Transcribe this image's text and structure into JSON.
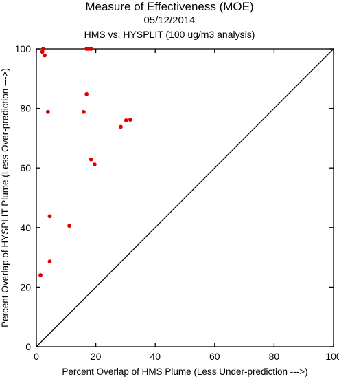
{
  "header": {
    "title": "Measure of Effectiveness (MOE)",
    "date": "05/12/2014",
    "analysis": "HMS vs. HYSPLIT  (100 ug/m3 analysis)"
  },
  "chart_data": {
    "type": "scatter",
    "xlabel": "Percent Overlap of HMS Plume (Less Under-prediction --->)",
    "ylabel": "Percent Overlap of HYSPLIT Plume (Less Over-prediction --->)",
    "xlim": [
      0,
      100
    ],
    "ylim": [
      0,
      100
    ],
    "xticks": [
      0,
      20,
      40,
      60,
      80,
      100
    ],
    "yticks": [
      0,
      20,
      40,
      60,
      80,
      100
    ],
    "grid": false,
    "reference_line": "diagonal y = x",
    "point_color": "#e00000",
    "points": [
      {
        "x": 2.3,
        "y": 100
      },
      {
        "x": 2.0,
        "y": 99.0
      },
      {
        "x": 2.8,
        "y": 97.8
      },
      {
        "x": 16.9,
        "y": 100
      },
      {
        "x": 17.6,
        "y": 100
      },
      {
        "x": 18.4,
        "y": 100
      },
      {
        "x": 16.9,
        "y": 84.8
      },
      {
        "x": 3.9,
        "y": 78.8
      },
      {
        "x": 15.9,
        "y": 78.8
      },
      {
        "x": 30.2,
        "y": 76.0
      },
      {
        "x": 31.6,
        "y": 76.2
      },
      {
        "x": 28.4,
        "y": 73.8
      },
      {
        "x": 18.4,
        "y": 62.9
      },
      {
        "x": 19.6,
        "y": 61.2
      },
      {
        "x": 4.5,
        "y": 43.8
      },
      {
        "x": 11.1,
        "y": 40.6
      },
      {
        "x": 4.5,
        "y": 28.6
      },
      {
        "x": 1.4,
        "y": 24.0
      }
    ]
  }
}
